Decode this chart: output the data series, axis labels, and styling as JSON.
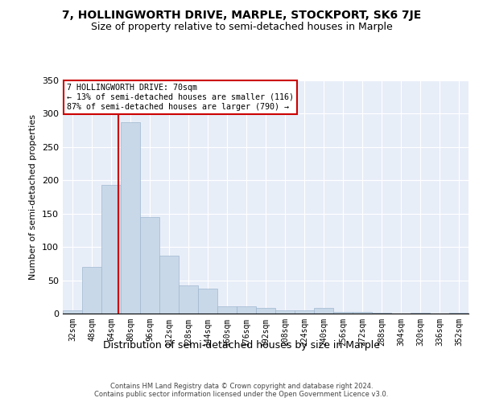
{
  "title": "7, HOLLINGWORTH DRIVE, MARPLE, STOCKPORT, SK6 7JE",
  "subtitle": "Size of property relative to semi-detached houses in Marple",
  "xlabel": "Distribution of semi-detached houses by size in Marple",
  "ylabel": "Number of semi-detached properties",
  "categories": [
    "32sqm",
    "48sqm",
    "64sqm",
    "80sqm",
    "96sqm",
    "112sqm",
    "128sqm",
    "144sqm",
    "160sqm",
    "176sqm",
    "192sqm",
    "208sqm",
    "224sqm",
    "240sqm",
    "256sqm",
    "272sqm",
    "288sqm",
    "304sqm",
    "320sqm",
    "336sqm",
    "352sqm"
  ],
  "values": [
    5,
    70,
    193,
    287,
    145,
    87,
    42,
    37,
    11,
    11,
    8,
    5,
    5,
    8,
    3,
    2,
    1,
    0,
    1,
    0,
    1
  ],
  "bar_color": "#c8d8e8",
  "bar_edge_color": "#a0b8d0",
  "smaller_pct": 13,
  "smaller_count": 116,
  "larger_pct": 87,
  "larger_count": 790,
  "annotation_box_edge": "#cc0000",
  "vline_color": "#cc0000",
  "plot_bg_color": "#e8eef8",
  "grid_color": "#ffffff",
  "title_fontsize": 10,
  "subtitle_fontsize": 9,
  "footer": "Contains HM Land Registry data © Crown copyright and database right 2024.\nContains public sector information licensed under the Open Government Licence v3.0.",
  "yticks": [
    0,
    50,
    100,
    150,
    200,
    250,
    300,
    350
  ],
  "ylim": [
    0,
    350
  ],
  "vline_x": 2.375
}
